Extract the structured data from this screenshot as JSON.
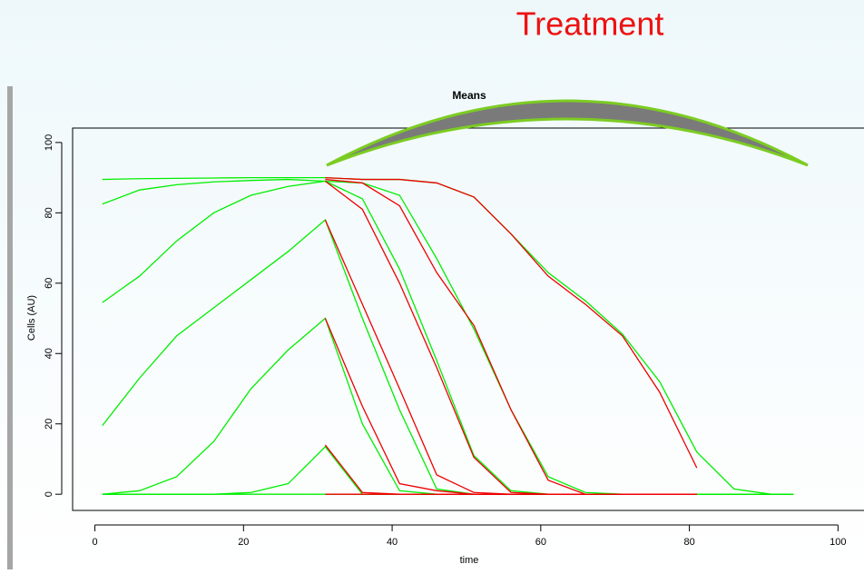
{
  "slide_title": "Treatment",
  "chart_data": {
    "type": "line",
    "title": "Means",
    "xlabel": "time",
    "ylabel": "Cells (AU)",
    "x": [
      1,
      6,
      11,
      16,
      21,
      26,
      31,
      36,
      41,
      46,
      51,
      56,
      61,
      66,
      71,
      76,
      81,
      86,
      91,
      94
    ],
    "xlim": [
      -3,
      103.5
    ],
    "ylim": [
      -4.6,
      104.1
    ],
    "xticks": [
      0,
      20,
      40,
      60,
      80,
      100
    ],
    "yticks": [
      0,
      20,
      40,
      60,
      80,
      100
    ],
    "series": [
      {
        "color": "#00ee00",
        "values": [
          89.5,
          89.7,
          89.8,
          89.9,
          90,
          90,
          90,
          89.5,
          89.5,
          88.5,
          84.5,
          74,
          63,
          55,
          45.5,
          32,
          12,
          1.5,
          0,
          0
        ]
      },
      {
        "color": "#00ee00",
        "values": [
          82.5,
          86.5,
          88,
          88.8,
          89.2,
          89.5,
          89,
          88.5,
          85,
          67,
          47,
          24,
          5,
          0.5,
          0,
          0,
          0,
          0,
          0,
          0
        ]
      },
      {
        "color": "#00ee00",
        "values": [
          54.5,
          62,
          72,
          80,
          85,
          87.5,
          89,
          84,
          64,
          38,
          11,
          1,
          0,
          0,
          0,
          0,
          0,
          0,
          0,
          0
        ]
      },
      {
        "color": "#00ee00",
        "values": [
          19.5,
          33,
          45,
          53,
          61,
          69,
          78,
          50,
          24,
          1.5,
          0,
          0,
          0,
          0,
          0,
          0,
          0,
          0,
          0,
          0
        ]
      },
      {
        "color": "#00ee00",
        "values": [
          0,
          1,
          5,
          15,
          30,
          41,
          50,
          20,
          1,
          0,
          0,
          0,
          0,
          0,
          0,
          0,
          0,
          0,
          0,
          0
        ]
      },
      {
        "color": "#00ee00",
        "values": [
          0,
          0,
          0,
          0,
          0.5,
          3,
          13.5,
          0,
          0,
          0,
          0,
          0,
          0,
          0,
          0,
          0,
          0,
          0,
          0,
          0
        ]
      },
      {
        "color": "#00ee00",
        "values": [
          0,
          0,
          0,
          0,
          0,
          0,
          0,
          0,
          0,
          0,
          0,
          0,
          0,
          0,
          0,
          0,
          0,
          0,
          0,
          0
        ]
      },
      {
        "color": "#ee0000",
        "values": [
          null,
          null,
          null,
          null,
          null,
          null,
          90,
          89.5,
          89.5,
          88.5,
          84.5,
          74,
          62,
          54,
          45,
          29,
          7.5,
          null,
          null,
          null
        ]
      },
      {
        "color": "#ee0000",
        "values": [
          null,
          null,
          null,
          null,
          null,
          null,
          89.5,
          88.5,
          82,
          63,
          48,
          24,
          4,
          0,
          0,
          0,
          0,
          null,
          null,
          null
        ]
      },
      {
        "color": "#ee0000",
        "values": [
          null,
          null,
          null,
          null,
          null,
          null,
          89,
          81,
          60,
          36,
          10.5,
          0.5,
          0,
          0,
          0,
          0,
          0,
          null,
          null,
          null
        ]
      },
      {
        "color": "#ee0000",
        "values": [
          null,
          null,
          null,
          null,
          null,
          null,
          78,
          54,
          30,
          5.5,
          0.5,
          0,
          0,
          0,
          0,
          0,
          0,
          null,
          null,
          null
        ]
      },
      {
        "color": "#ee0000",
        "values": [
          null,
          null,
          null,
          null,
          null,
          null,
          50,
          25,
          3,
          1,
          0,
          0,
          0,
          0,
          0,
          0,
          0,
          null,
          null,
          null
        ]
      },
      {
        "color": "#ee0000",
        "values": [
          null,
          null,
          null,
          null,
          null,
          null,
          14,
          0.5,
          0,
          0,
          0,
          0,
          0,
          0,
          0,
          0,
          0,
          null,
          null,
          null
        ]
      },
      {
        "color": "#ee0000",
        "values": [
          null,
          null,
          null,
          null,
          null,
          null,
          0,
          0,
          0,
          0,
          0,
          0,
          0,
          0,
          0,
          0,
          0,
          null,
          null,
          null
        ]
      }
    ]
  }
}
